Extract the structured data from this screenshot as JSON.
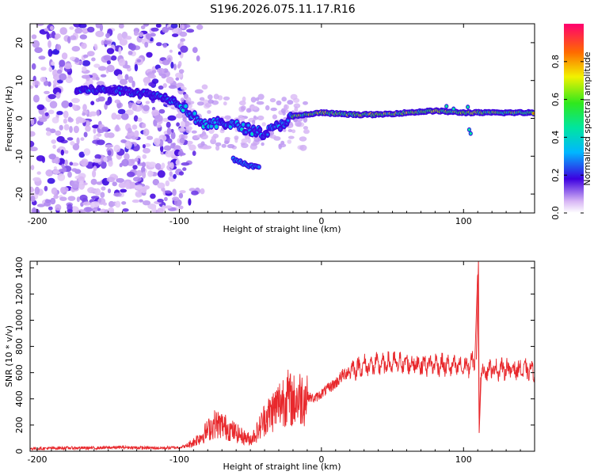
{
  "title": "S196.2026.075.11.17.R16",
  "chart_data": [
    {
      "type": "heatmap",
      "name": "spectrogram",
      "xlabel": "Height of straight line (km)",
      "ylabel": "Frequency (Hz)",
      "xlim": [
        -205,
        150
      ],
      "ylim": [
        -25,
        25
      ],
      "xticks": [
        -200,
        -100,
        0,
        100
      ],
      "yticks": [
        -20,
        -10,
        0,
        10,
        20
      ],
      "colorbar": {
        "label": "Normalized spectral amplitude",
        "range": [
          0,
          1
        ],
        "ticks": [
          0,
          0.2,
          0.4,
          0.6,
          0.8
        ],
        "tick_labels": [
          "0.0",
          "0.2",
          "0.4",
          "0.6",
          "0.8"
        ]
      },
      "ridge": [
        {
          "x": -170,
          "freq": 7.5
        },
        {
          "x": -150,
          "freq": 7.5
        },
        {
          "x": -130,
          "freq": 7
        },
        {
          "x": -110,
          "freq": 5.5
        },
        {
          "x": -100,
          "freq": 4
        },
        {
          "x": -90,
          "freq": 0.5
        },
        {
          "x": -80,
          "freq": -2
        },
        {
          "x": -70,
          "freq": -1
        },
        {
          "x": -60,
          "freq": -2
        },
        {
          "x": -50,
          "freq": -3
        },
        {
          "x": -40,
          "freq": -4
        },
        {
          "x": -30,
          "freq": -2
        },
        {
          "x": -20,
          "freq": 0.5
        },
        {
          "x": -10,
          "freq": 1
        },
        {
          "x": 0,
          "freq": 1.5
        },
        {
          "x": 20,
          "freq": 1
        },
        {
          "x": 40,
          "freq": 1
        },
        {
          "x": 60,
          "freq": 1.5
        },
        {
          "x": 80,
          "freq": 2
        },
        {
          "x": 100,
          "freq": 1.5
        },
        {
          "x": 120,
          "freq": 1.5
        },
        {
          "x": 150,
          "freq": 1.5
        }
      ],
      "branch": [
        {
          "x": -60,
          "freq": -11
        },
        {
          "x": -50,
          "freq": -12.5
        },
        {
          "x": -45,
          "freq": -13
        }
      ]
    },
    {
      "type": "line",
      "name": "snr",
      "xlabel": "Height of straight line (km)",
      "ylabel": "SNR (10 * v/v)",
      "xlim": [
        -205,
        150
      ],
      "ylim": [
        0,
        1450
      ],
      "xticks": [
        -200,
        -100,
        0,
        100
      ],
      "yticks": [
        0,
        200,
        400,
        600,
        800,
        1000,
        1200,
        1400
      ],
      "series": [
        {
          "name": "SNR",
          "color": "#e8282c",
          "x": [
            -205,
            -180,
            -160,
            -140,
            -120,
            -110,
            -100,
            -95,
            -90,
            -85,
            -80,
            -75,
            -70,
            -65,
            -60,
            -55,
            -50,
            -45,
            -40,
            -35,
            -30,
            -25,
            -20,
            -15,
            -10,
            -5,
            0,
            5,
            10,
            15,
            20,
            30,
            40,
            50,
            60,
            70,
            80,
            90,
            100,
            105,
            108,
            110,
            111,
            112,
            115,
            120,
            130,
            140,
            150
          ],
          "y": [
            20,
            25,
            25,
            30,
            25,
            25,
            30,
            40,
            70,
            110,
            160,
            210,
            200,
            170,
            140,
            110,
            90,
            150,
            250,
            300,
            360,
            420,
            380,
            410,
            420,
            400,
            440,
            480,
            520,
            580,
            620,
            650,
            660,
            670,
            670,
            660,
            665,
            650,
            640,
            660,
            700,
            1400,
            150,
            560,
            620,
            625,
            630,
            620,
            615
          ]
        }
      ]
    }
  ]
}
